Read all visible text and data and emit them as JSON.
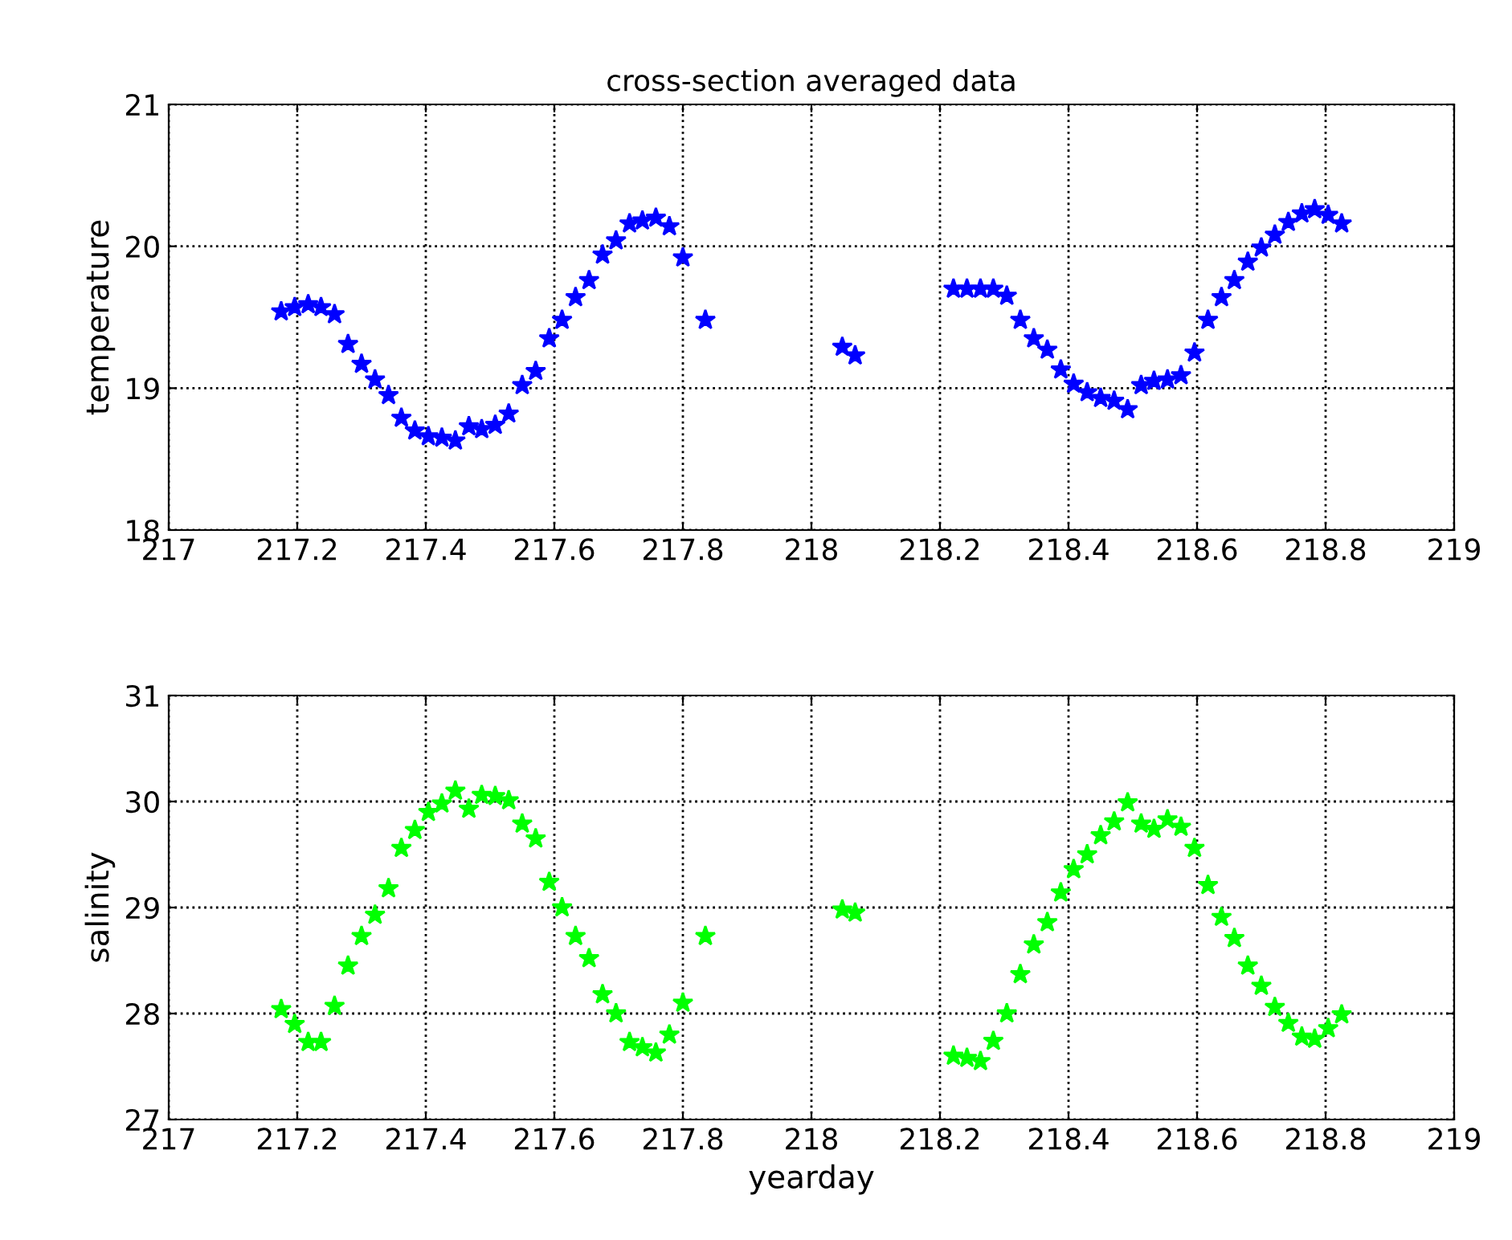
{
  "chart_data": [
    {
      "type": "scatter",
      "title": "cross-section averaged data",
      "ylabel": "temperature",
      "marker": "star",
      "grid": true,
      "xlim": [
        217,
        219
      ],
      "xticks": [
        217,
        217.2,
        217.4,
        217.6,
        217.8,
        218,
        218.2,
        218.4,
        218.6,
        218.8,
        219
      ],
      "ylim": [
        18,
        21
      ],
      "yticks": [
        18,
        19,
        20,
        21
      ],
      "x": [
        217.175,
        217.196,
        217.217,
        217.237,
        217.258,
        217.279,
        217.3,
        217.321,
        217.342,
        217.362,
        217.383,
        217.404,
        217.425,
        217.446,
        217.467,
        217.487,
        217.508,
        217.529,
        217.55,
        217.571,
        217.592,
        217.612,
        217.633,
        217.654,
        217.675,
        217.696,
        217.717,
        217.737,
        217.758,
        217.779,
        217.8,
        217.835,
        218.048,
        218.068,
        218.221,
        218.242,
        218.263,
        218.283,
        218.304,
        218.325,
        218.346,
        218.367,
        218.388,
        218.408,
        218.429,
        218.45,
        218.471,
        218.492,
        218.513,
        218.533,
        218.554,
        218.575,
        218.596,
        218.617,
        218.638,
        218.658,
        218.679,
        218.7,
        218.721,
        218.742,
        218.763,
        218.783,
        218.804,
        218.825
      ],
      "series": [
        {
          "color": "#0000ff",
          "values": [
            19.54,
            19.57,
            19.59,
            19.57,
            19.52,
            19.31,
            19.17,
            19.06,
            18.95,
            18.79,
            18.7,
            18.66,
            18.65,
            18.63,
            18.73,
            18.71,
            18.74,
            18.82,
            19.02,
            19.12,
            19.35,
            19.48,
            19.64,
            19.76,
            19.94,
            20.04,
            20.16,
            20.18,
            20.2,
            20.14,
            19.92,
            19.48,
            19.29,
            19.23,
            19.7,
            19.7,
            19.7,
            19.7,
            19.65,
            19.48,
            19.35,
            19.27,
            19.13,
            19.03,
            18.97,
            18.93,
            18.91,
            18.85,
            19.02,
            19.05,
            19.06,
            19.09,
            19.25,
            19.48,
            19.64,
            19.76,
            19.89,
            19.99,
            20.08,
            20.17,
            20.23,
            20.26,
            20.22,
            20.16
          ]
        }
      ]
    },
    {
      "type": "scatter",
      "xlabel": "yearday",
      "ylabel": "salinity",
      "marker": "star",
      "grid": true,
      "xlim": [
        217,
        219
      ],
      "xticks": [
        217,
        217.2,
        217.4,
        217.6,
        217.8,
        218,
        218.2,
        218.4,
        218.6,
        218.8,
        219
      ],
      "ylim": [
        27,
        31
      ],
      "yticks": [
        27,
        28,
        29,
        30,
        31
      ],
      "x": [
        217.175,
        217.196,
        217.217,
        217.237,
        217.258,
        217.279,
        217.3,
        217.321,
        217.342,
        217.362,
        217.383,
        217.404,
        217.425,
        217.446,
        217.467,
        217.487,
        217.508,
        217.529,
        217.55,
        217.571,
        217.592,
        217.612,
        217.633,
        217.654,
        217.675,
        217.696,
        217.717,
        217.737,
        217.758,
        217.779,
        217.8,
        217.835,
        218.048,
        218.068,
        218.221,
        218.242,
        218.263,
        218.283,
        218.304,
        218.325,
        218.346,
        218.367,
        218.388,
        218.408,
        218.429,
        218.45,
        218.471,
        218.492,
        218.513,
        218.533,
        218.554,
        218.575,
        218.596,
        218.617,
        218.638,
        218.658,
        218.679,
        218.7,
        218.721,
        218.742,
        218.763,
        218.783,
        218.804,
        218.825
      ],
      "series": [
        {
          "color": "#00ff00",
          "values": [
            28.04,
            27.9,
            27.73,
            27.73,
            28.07,
            28.45,
            28.73,
            28.93,
            29.18,
            29.56,
            29.73,
            29.9,
            29.98,
            30.1,
            29.93,
            30.06,
            30.05,
            30.01,
            29.79,
            29.65,
            29.24,
            29.0,
            28.73,
            28.52,
            28.18,
            28.0,
            27.73,
            27.68,
            27.63,
            27.8,
            28.1,
            28.73,
            28.98,
            28.95,
            27.6,
            27.58,
            27.55,
            27.74,
            28.0,
            28.37,
            28.65,
            28.86,
            29.14,
            29.36,
            29.5,
            29.68,
            29.81,
            29.99,
            29.79,
            29.74,
            29.83,
            29.76,
            29.56,
            29.21,
            28.91,
            28.71,
            28.45,
            28.26,
            28.06,
            27.91,
            27.78,
            27.76,
            27.86,
            27.99
          ]
        }
      ]
    }
  ]
}
